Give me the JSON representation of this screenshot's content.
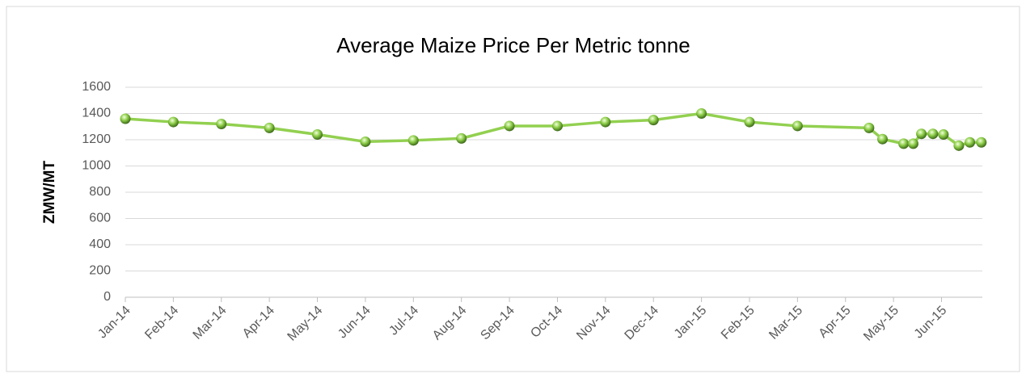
{
  "chart_data": {
    "type": "line",
    "title": "Average Maize Price Per Metric tonne",
    "y_label": "ZMW/MT",
    "x": [
      0,
      1,
      2,
      3,
      4,
      5,
      6,
      7,
      8,
      9,
      10,
      11,
      12,
      13,
      14,
      15.49,
      15.77,
      16.21,
      16.41,
      16.58,
      16.82,
      17.04,
      17.36,
      17.59,
      17.83
    ],
    "series": [
      {
        "name": "Average Maize Price",
        "color": "#92d050",
        "values": [
          1360,
          1335,
          1320,
          1290,
          1240,
          1185,
          1195,
          1210,
          1305,
          1305,
          1335,
          1350,
          1400,
          1335,
          1305,
          1290,
          1205,
          1170,
          1170,
          1245,
          1245,
          1240,
          1155,
          1180,
          1180
        ]
      }
    ],
    "xlim": [
      0,
      17.85
    ],
    "xticks": [
      {
        "value": 0,
        "label": "Jan-14"
      },
      {
        "value": 1,
        "label": "Feb-14"
      },
      {
        "value": 2,
        "label": "Mar-14"
      },
      {
        "value": 3,
        "label": "Apr-14"
      },
      {
        "value": 4,
        "label": "May-14"
      },
      {
        "value": 5,
        "label": "Jun-14"
      },
      {
        "value": 6,
        "label": "Jul-14"
      },
      {
        "value": 7,
        "label": "Aug-14"
      },
      {
        "value": 8,
        "label": "Sep-14"
      },
      {
        "value": 9,
        "label": "Oct-14"
      },
      {
        "value": 10,
        "label": "Nov-14"
      },
      {
        "value": 11,
        "label": "Dec-14"
      },
      {
        "value": 12,
        "label": "Jan-15"
      },
      {
        "value": 13,
        "label": "Feb-15"
      },
      {
        "value": 14,
        "label": "Mar-15"
      },
      {
        "value": 15,
        "label": "Apr-15"
      },
      {
        "value": 16,
        "label": "May-15"
      },
      {
        "value": 17,
        "label": "Jun-15"
      }
    ],
    "ylim": [
      0,
      1600
    ],
    "yticks": [
      0,
      200,
      400,
      600,
      800,
      1000,
      1200,
      1400,
      1600
    ],
    "grid": true
  }
}
